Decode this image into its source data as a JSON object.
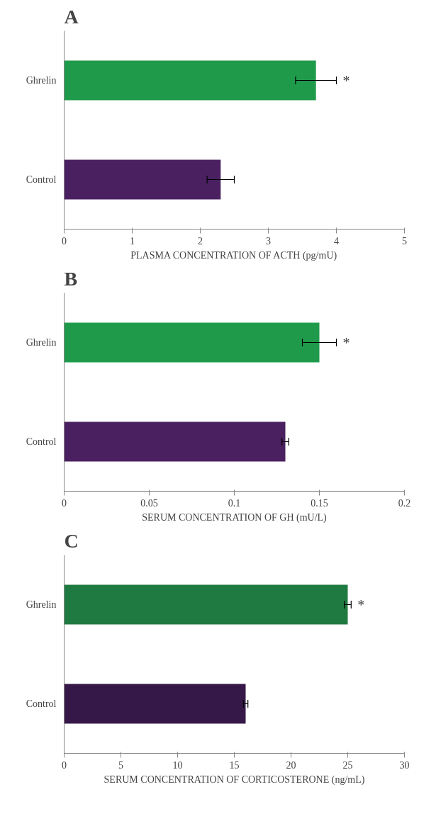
{
  "chart_data": [
    {
      "type": "bar",
      "orientation": "horizontal",
      "title": "A",
      "categories": [
        "Ghrelin",
        "Control"
      ],
      "values": [
        3.7,
        2.3
      ],
      "colors": [
        "#1f9a4a",
        "#4a2060"
      ],
      "errors": [
        0.3,
        0.2
      ],
      "xlim": [
        0,
        5
      ],
      "xticks": [
        0,
        1,
        2,
        3,
        4,
        5
      ],
      "xlabel": "PLASMA CONCENTRATION OF ACTH (pg/mU)",
      "grid": false,
      "annotations": [
        "*"
      ]
    },
    {
      "type": "bar",
      "orientation": "horizontal",
      "title": "B",
      "categories": [
        "Ghrelin",
        "Control"
      ],
      "values": [
        0.15,
        0.13
      ],
      "colors": [
        "#1f9a4a",
        "#4a2060"
      ],
      "errors": [
        0.01,
        0.002
      ],
      "xlim": [
        0,
        0.2
      ],
      "xticks": [
        0,
        0.05,
        0.1,
        0.15,
        0.2
      ],
      "xlabel": "SERUM CONCENTRATION OF GH (mU/L)",
      "grid": false,
      "annotations": [
        "*"
      ]
    },
    {
      "type": "bar",
      "orientation": "horizontal",
      "title": "C",
      "categories": [
        "Ghrelin",
        "Control"
      ],
      "values": [
        25,
        16
      ],
      "colors": [
        "#1e7a40",
        "#361848"
      ],
      "errors": [
        0.3,
        0.2
      ],
      "xlim": [
        0,
        30
      ],
      "xticks": [
        0,
        5,
        10,
        15,
        20,
        25,
        30
      ],
      "xlabel": "SERUM CONCENTRATION OF CORTICOSTERONE (ng/mL)",
      "grid": false,
      "annotations": [
        "*"
      ]
    }
  ]
}
